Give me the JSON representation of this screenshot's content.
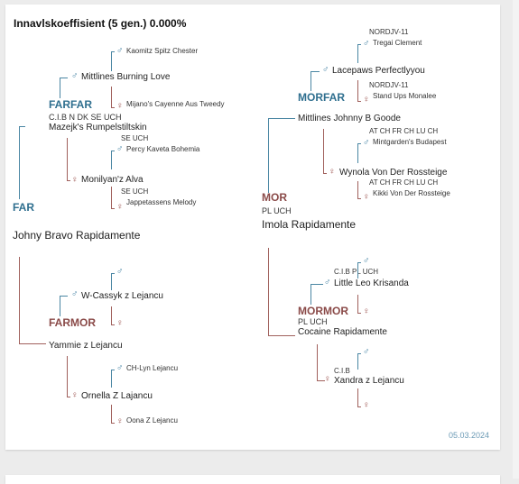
{
  "title": "Innavlskoeffisient (5 gen.) 0.000%",
  "date": "05.03.2024",
  "symbols": {
    "male": "♂",
    "female": "♀"
  },
  "far": {
    "label": "FAR",
    "name": "Johny Bravo Rapidamente",
    "farfar": {
      "label": "FARFAR",
      "titles": "C.I.B N DK SE UCH",
      "name": "Mazejk's Rumpelstiltskin",
      "sire": {
        "name": "Mittlines Burning Love",
        "sire": "Kaomitz Spitz Chester",
        "dam": "Mijano's Cayenne Aus Tweedy"
      },
      "dam": {
        "name": "Monilyan'z Alva",
        "sire_titles": "SE UCH",
        "sire": "Percy Kaveta Bohemia",
        "dam_titles": "SE UCH",
        "dam": "Jappetassens Melody"
      }
    },
    "farmor": {
      "label": "FARMOR",
      "name": "Yammie z Lejancu",
      "sire": {
        "name": "W-Cassyk z Lejancu",
        "sire": "",
        "dam": ""
      },
      "dam": {
        "name": "Ornella Z Lajancu",
        "sire": "CH-Lyn Lejancu",
        "dam": "Oona Z Lejancu"
      }
    }
  },
  "mor": {
    "label": "MOR",
    "titles": "PL UCH",
    "name": "Imola Rapidamente",
    "morfar": {
      "label": "MORFAR",
      "name": "Mittlines Johnny B Goode",
      "sire": {
        "name": "Lacepaws Perfectlyyou",
        "sire_titles": "NORDJV-11",
        "sire": "Tregai Clement",
        "dam_titles": "NORDJV-11",
        "dam": "Stand Ups Monalee"
      },
      "dam": {
        "name": "Wynola Von Der Rossteige",
        "sire_titles": "AT CH FR CH LU CH",
        "sire": "Mintgarden's Budapest",
        "dam_titles": "AT CH FR CH LU CH",
        "dam": "Kikki Von Der Rossteige"
      }
    },
    "mormor": {
      "label": "MORMOR",
      "titles": "PL UCH",
      "name": "Cocaine Rapidamente",
      "sire": {
        "titles": "C.I.B PL UCH",
        "name": "Little Leo Krisanda",
        "sire": "",
        "dam": ""
      },
      "dam": {
        "titles": "C.I.B",
        "name": "Xandra z Lejancu",
        "sire": "",
        "dam": ""
      }
    }
  }
}
